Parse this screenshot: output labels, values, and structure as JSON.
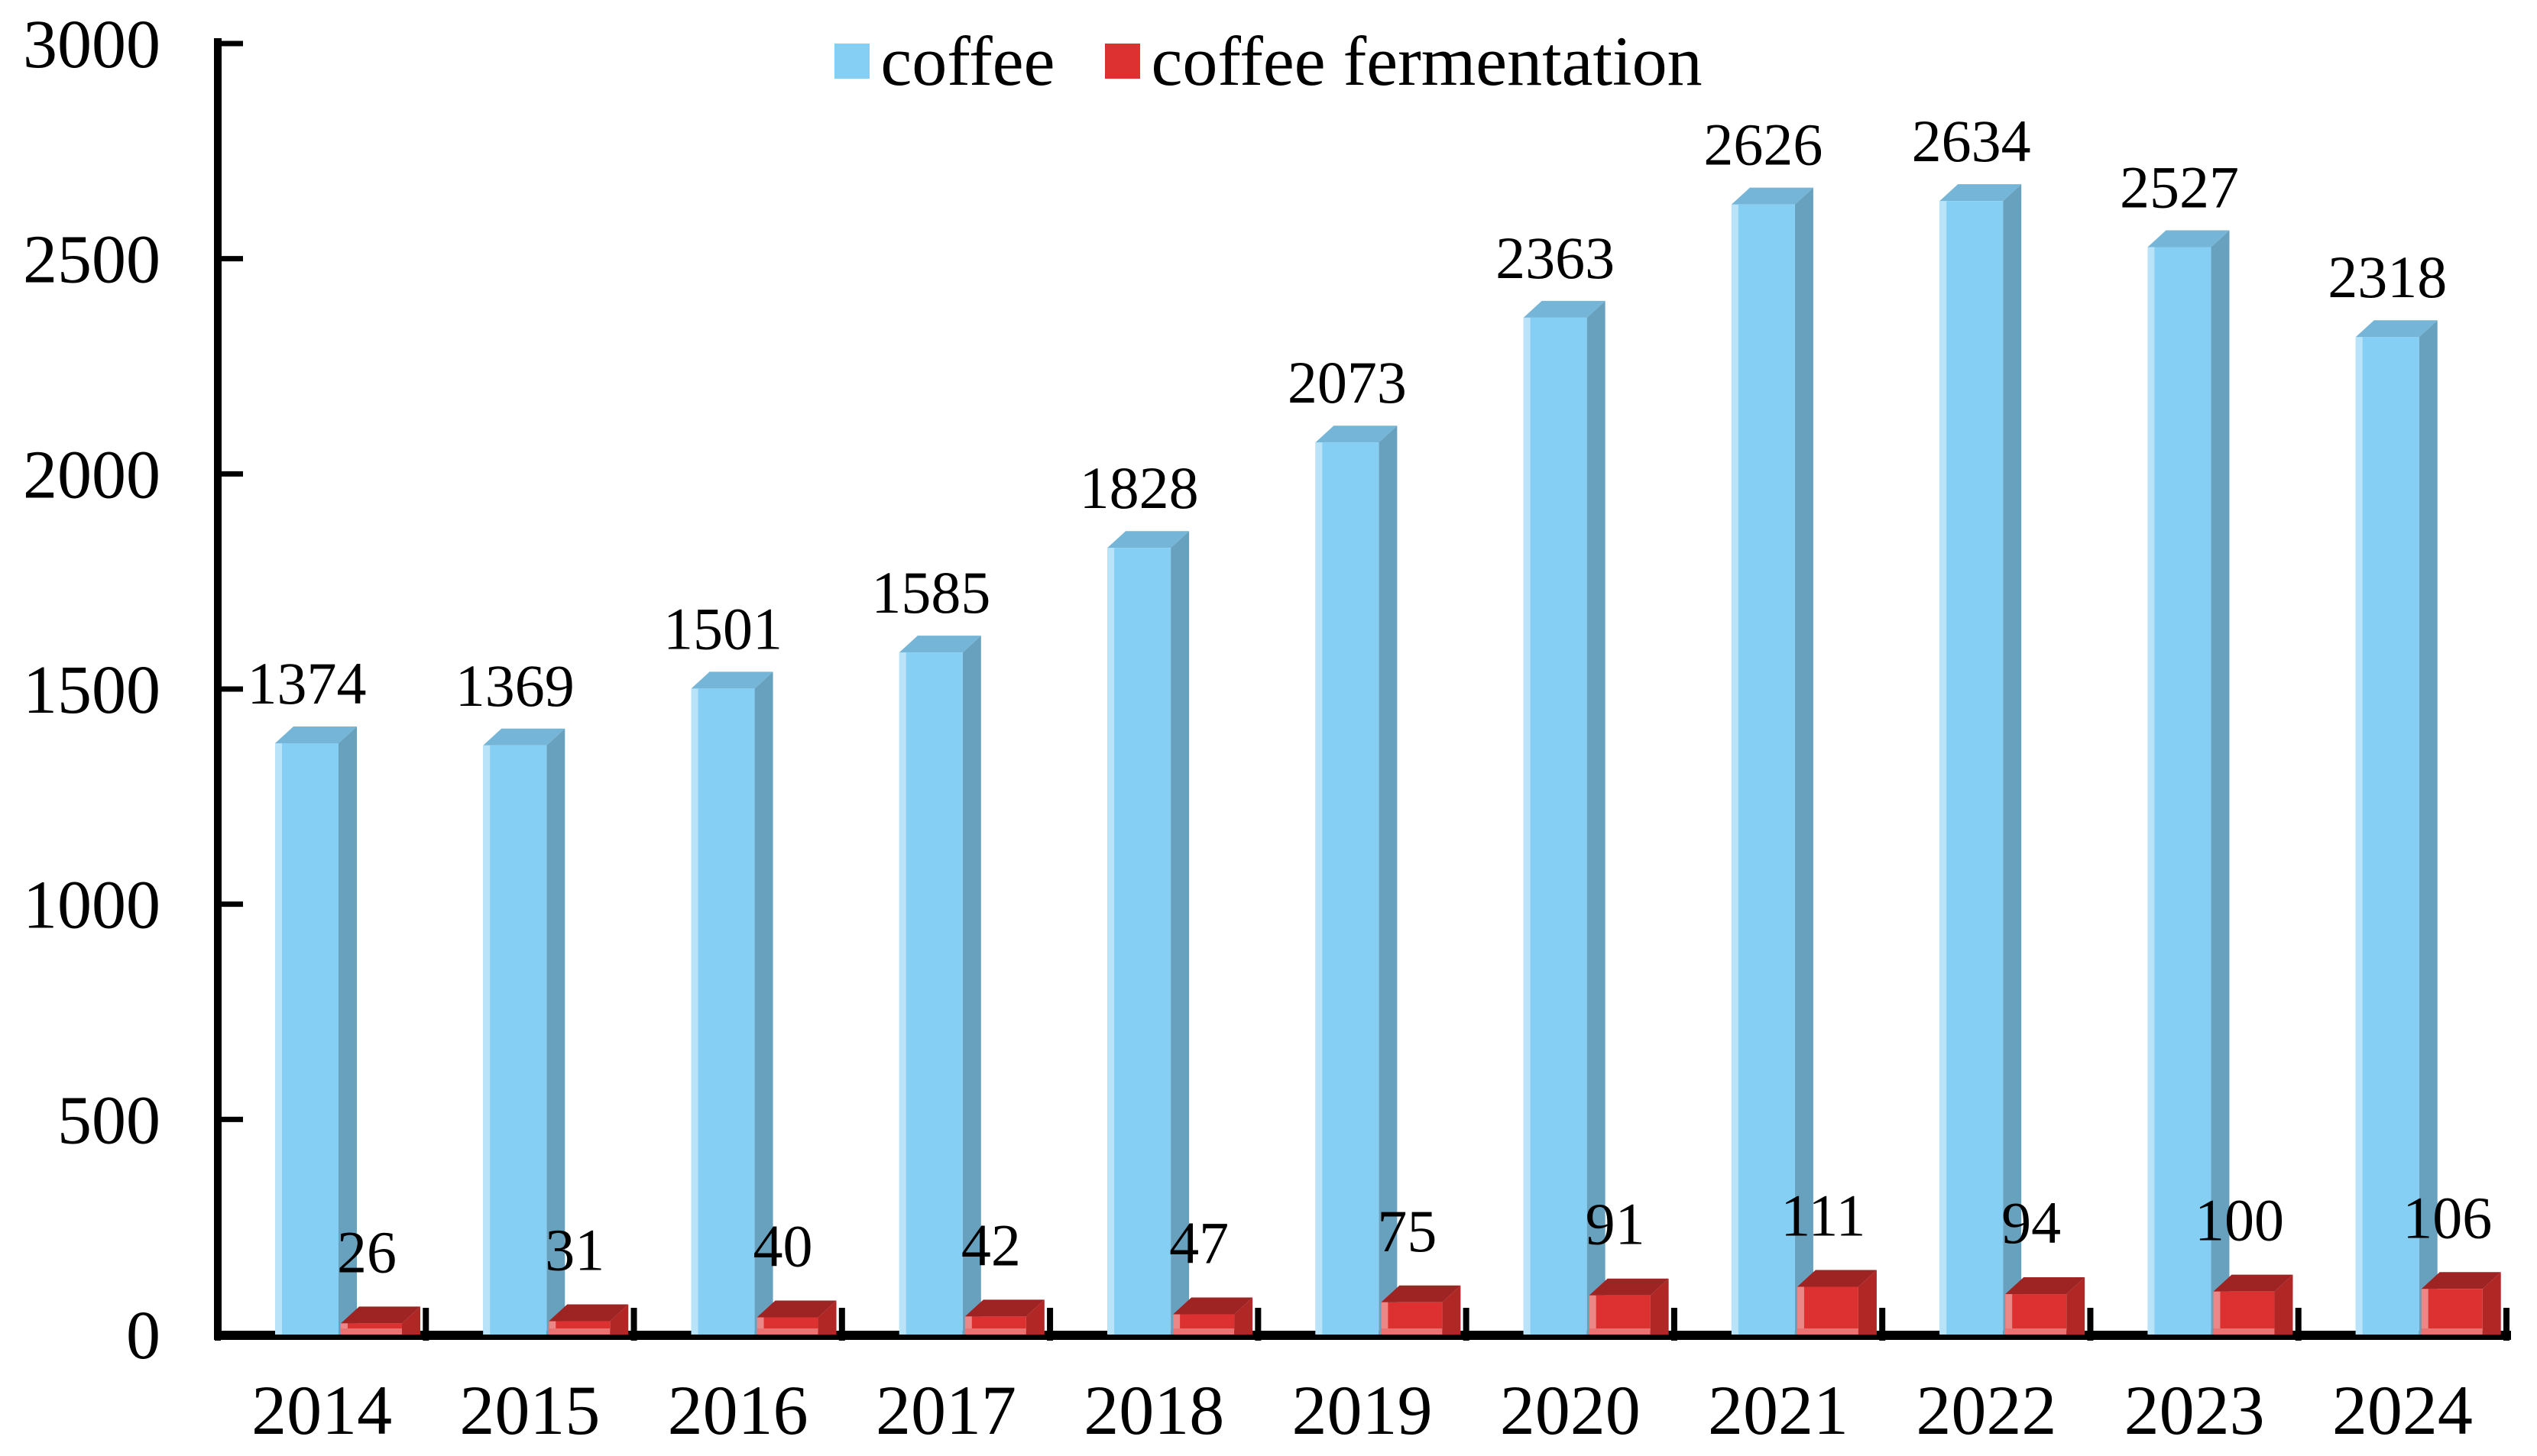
{
  "chart_data": {
    "type": "bar",
    "style": "3d-clustered-column",
    "title": "",
    "xlabel": "",
    "ylabel": "",
    "categories": [
      "2014",
      "2015",
      "2016",
      "2017",
      "2018",
      "2019",
      "2020",
      "2021",
      "2022",
      "2023",
      "2024"
    ],
    "series": [
      {
        "name": "coffee",
        "color": "#85CEF4",
        "values": [
          1374,
          1369,
          1501,
          1585,
          1828,
          2073,
          2363,
          2626,
          2634,
          2527,
          2318
        ]
      },
      {
        "name": "coffee fermentation",
        "color": "#DC3130",
        "values": [
          26,
          31,
          40,
          42,
          47,
          75,
          91,
          111,
          94,
          100,
          106
        ]
      }
    ],
    "ylim": [
      0,
      3000
    ],
    "ytick_step": 500,
    "ytick_labels": [
      "0",
      "500",
      "1000",
      "1500",
      "2000",
      "2500",
      "3000"
    ],
    "grid": false,
    "legend_position": "top-center",
    "data_labels_shown": true,
    "axis_color": "#000000",
    "text_color": "#000000"
  }
}
